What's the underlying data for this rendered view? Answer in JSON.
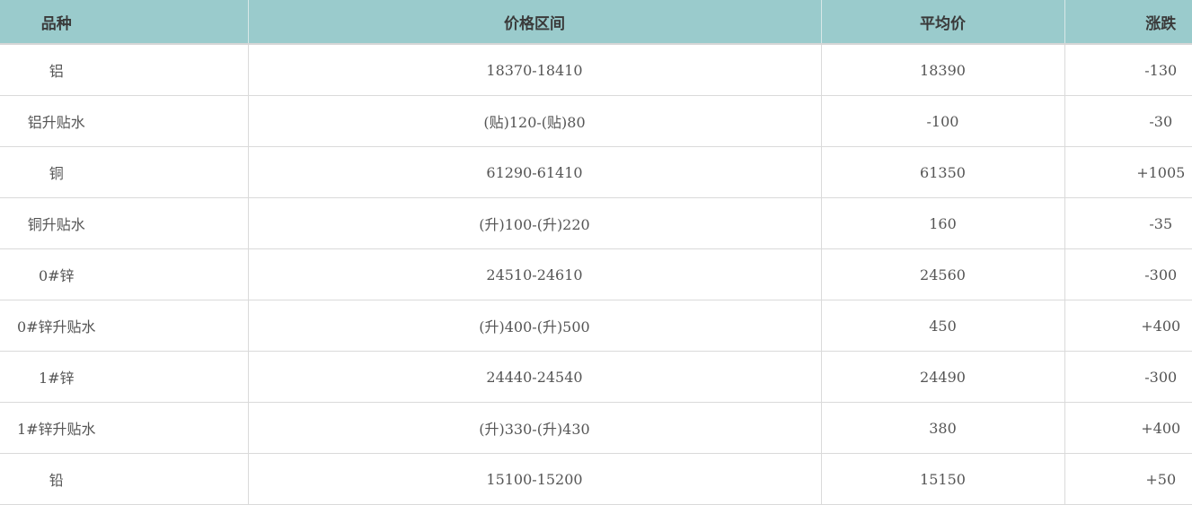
{
  "colors": {
    "header_bg": "#9acbcc",
    "text": "#555555"
  },
  "table": {
    "headers": [
      "品种",
      "价格区间",
      "平均价",
      "涨跌"
    ],
    "rows": [
      [
        "铝",
        "18370-18410",
        "18390",
        "-130"
      ],
      [
        "铝升贴水",
        "(贴)120-(贴)80",
        "-100",
        "-30"
      ],
      [
        "铜",
        "61290-61410",
        "61350",
        "+1005"
      ],
      [
        "铜升贴水",
        "(升)100-(升)220",
        "160",
        "-35"
      ],
      [
        "0#锌",
        "24510-24610",
        "24560",
        "-300"
      ],
      [
        "0#锌升贴水",
        "(升)400-(升)500",
        "450",
        "+400"
      ],
      [
        "1#锌",
        "24440-24540",
        "24490",
        "-300"
      ],
      [
        "1#锌升贴水",
        "(升)330-(升)430",
        "380",
        "+400"
      ],
      [
        "铅",
        "15100-15200",
        "15150",
        "+50"
      ]
    ]
  }
}
